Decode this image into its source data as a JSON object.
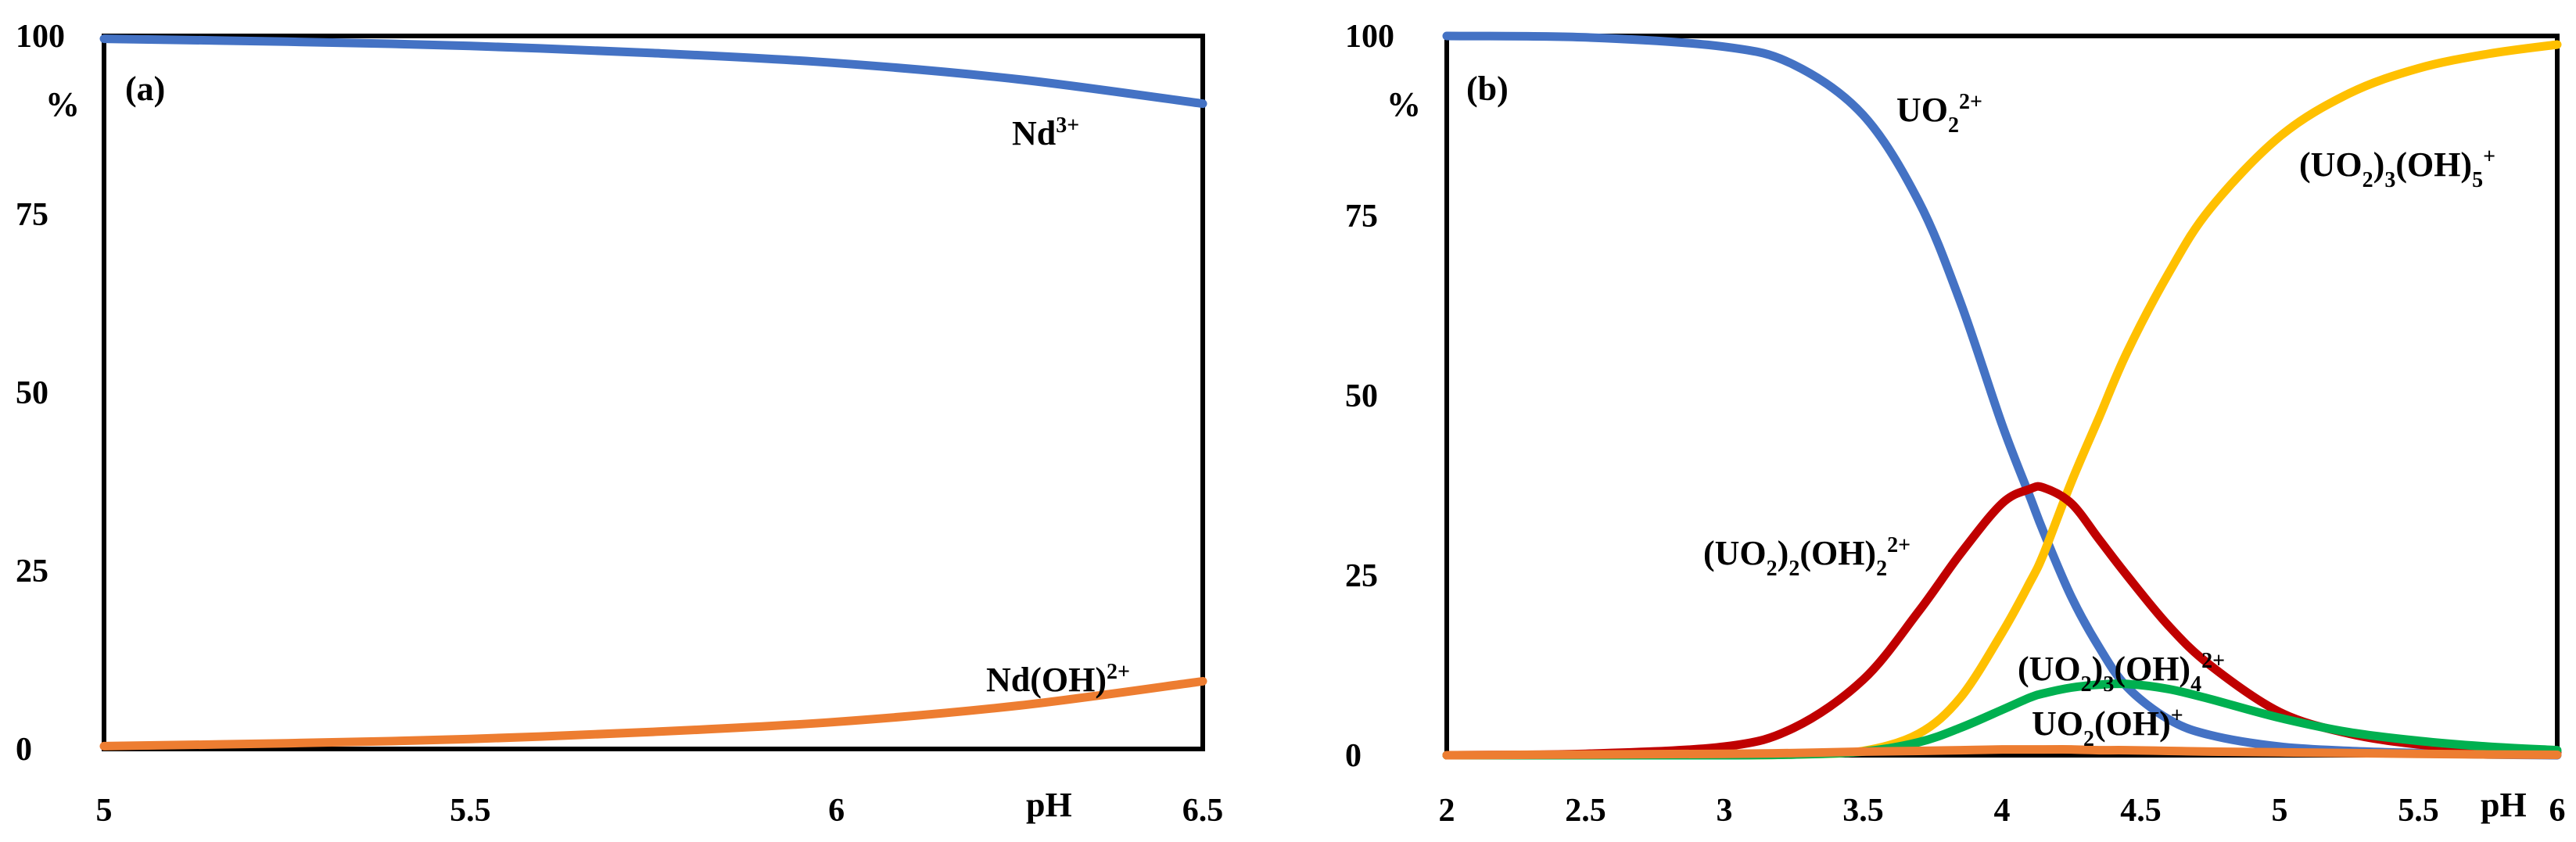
{
  "chart_data": [
    {
      "type": "line",
      "panel": "(a)",
      "xlabel": "pH",
      "ylabel": "%",
      "xlim": [
        5,
        6.5
      ],
      "ylim": [
        0,
        100
      ],
      "xticks": [
        "5",
        "5.5",
        "6",
        "6.5"
      ],
      "yticks": [
        "0",
        "25",
        "50",
        "75",
        "100"
      ],
      "series": [
        {
          "name": "Nd3+",
          "label": [
            "Nd",
            "3+"
          ],
          "color": "#4472C4",
          "x": [
            5.0,
            5.25,
            5.5,
            5.75,
            6.0,
            6.25,
            6.5
          ],
          "y": [
            99.6,
            99.2,
            98.6,
            97.6,
            96.2,
            93.9,
            90.5
          ]
        },
        {
          "name": "Nd(OH)2+",
          "label": [
            "Nd(OH)",
            "2+"
          ],
          "color": "#ED7D31",
          "x": [
            5.0,
            5.25,
            5.5,
            5.75,
            6.0,
            6.25,
            6.5
          ],
          "y": [
            0.4,
            0.8,
            1.4,
            2.4,
            3.8,
            6.1,
            9.5
          ]
        }
      ]
    },
    {
      "type": "line",
      "panel": "(b)",
      "xlabel": "pH",
      "ylabel": "%",
      "xlim": [
        2,
        6
      ],
      "ylim": [
        0,
        100
      ],
      "xticks": [
        "2",
        "2.5",
        "3",
        "3.5",
        "4",
        "4.5",
        "5",
        "5.5",
        "6"
      ],
      "yticks": [
        "0",
        "25",
        "50",
        "75",
        "100"
      ],
      "x": [
        2.0,
        2.5,
        3.0,
        3.25,
        3.5,
        3.7,
        3.85,
        4.0,
        4.1,
        4.15,
        4.25,
        4.35,
        4.45,
        4.6,
        4.75,
        5.0,
        5.25,
        5.5,
        5.75,
        6.0
      ],
      "series": [
        {
          "name": "UO2 2+",
          "label": [
            "UO",
            "2",
            "2+",
            ""
          ],
          "color": "#4472C4",
          "y": [
            100,
            99.8,
            98.5,
            96,
            89,
            77,
            63,
            46,
            36,
            31,
            22,
            15,
            9.5,
            5,
            2.8,
            1.2,
            0.6,
            0.3,
            0.1,
            0.0
          ]
        },
        {
          "name": "(UO2)3(OH)5+",
          "label": [
            "(UO",
            "2",
            ")",
            "3",
            "(OH)",
            "5",
            "+"
          ],
          "color": "#FFC000",
          "y": [
            0,
            0,
            0,
            0.1,
            0.6,
            3,
            8,
            17,
            24,
            28,
            38,
            47,
            56,
            67,
            76,
            86,
            92,
            95.5,
            97.5,
            98.8
          ]
        },
        {
          "name": "(UO2)2(OH)2 2+",
          "label": [
            "(UO",
            "2",
            ")",
            "2",
            "(OH)",
            "2",
            "2+"
          ],
          "color": "#C00000",
          "y": [
            0,
            0.2,
            1.2,
            3.8,
            10.5,
            20,
            28,
            35,
            37,
            37.2,
            35,
            30,
            25,
            18,
            12.5,
            6,
            3,
            1.5,
            0.8,
            0.4
          ]
        },
        {
          "name": "(UO2)3(OH)4 2+",
          "label": [
            "(UO",
            "2",
            ")",
            "3",
            "(OH)",
            "4",
            "2+"
          ],
          "color": "#00B050",
          "y": [
            0,
            0,
            0,
            0.1,
            0.5,
            1.8,
            3.8,
            6.3,
            8,
            8.6,
            9.4,
            9.8,
            9.9,
            9.2,
            7.8,
            5.2,
            3.2,
            2,
            1.2,
            0.7
          ]
        },
        {
          "name": "UO2(OH)+",
          "label": [
            "UO",
            "2",
            "(OH)",
            "+"
          ],
          "color": "#ED7D31",
          "y": [
            0,
            0.1,
            0.2,
            0.3,
            0.5,
            0.6,
            0.7,
            0.8,
            0.8,
            0.8,
            0.8,
            0.7,
            0.7,
            0.6,
            0.5,
            0.4,
            0.3,
            0.2,
            0.1,
            0.05
          ]
        }
      ]
    }
  ]
}
